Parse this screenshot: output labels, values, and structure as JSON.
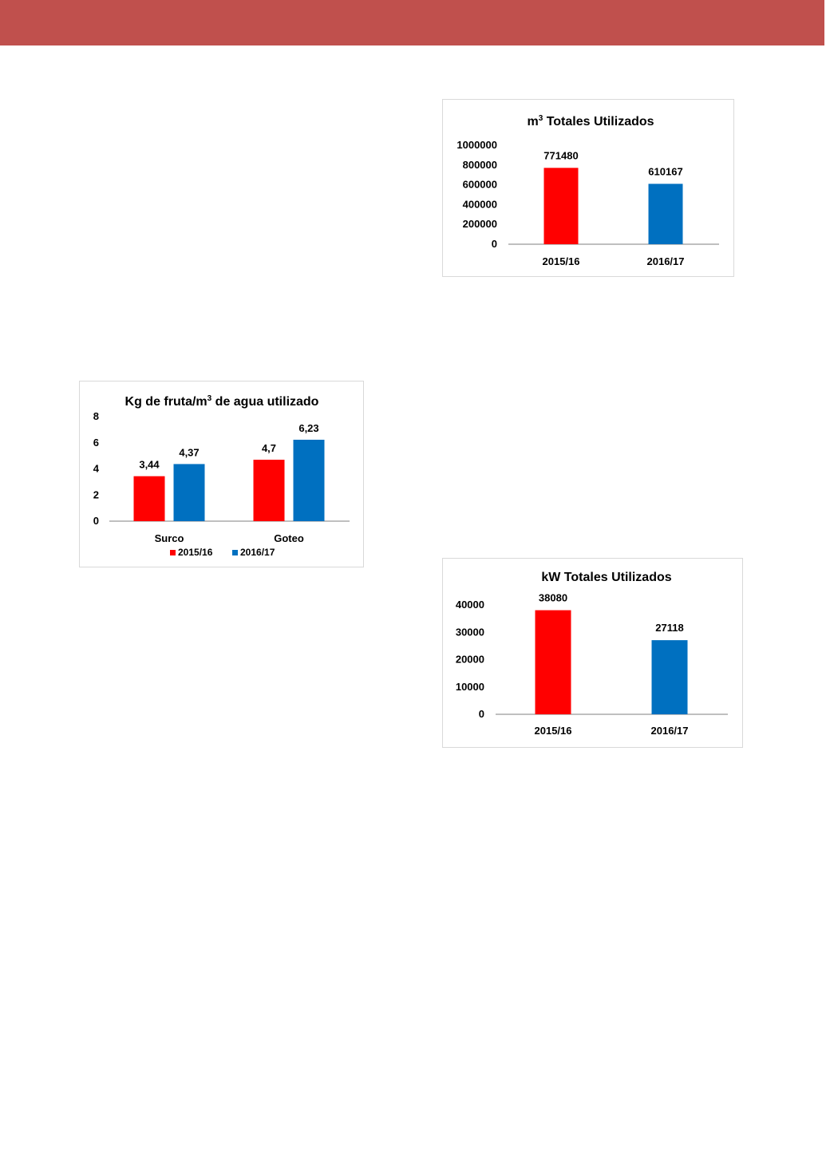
{
  "header": {
    "bar_color": "#c0504d"
  },
  "colors": {
    "series_2015": "#ff0000",
    "series_2016": "#0070c0"
  },
  "chart_data": [
    {
      "id": "m3",
      "type": "bar",
      "title_main": "m",
      "title_sup": "3",
      "title_rest": " Totales Utilizados",
      "categories": [
        "2015/16",
        "2016/17"
      ],
      "values": [
        771480,
        610167
      ],
      "data_labels": [
        "771480",
        "610167"
      ],
      "colors": [
        "#ff0000",
        "#0070c0"
      ],
      "yticks": [
        "0",
        "200000",
        "400000",
        "600000",
        "800000",
        "1000000"
      ],
      "ylim": [
        0,
        1000000
      ],
      "xlabel": "",
      "ylabel": "",
      "grid": false,
      "legend": "none"
    },
    {
      "id": "kg",
      "type": "bar",
      "title_main": "Kg de fruta/m",
      "title_sup": "3",
      "title_rest": " de agua utilizado",
      "categories": [
        "Surco",
        "Goteo"
      ],
      "series": [
        {
          "name": "2015/16",
          "color": "#ff0000",
          "values": [
            3.44,
            4.7
          ],
          "labels": [
            "3,44",
            "4,7"
          ]
        },
        {
          "name": "2016/17",
          "color": "#0070c0",
          "values": [
            4.37,
            6.23
          ],
          "labels": [
            "4,37",
            "6,23"
          ]
        }
      ],
      "yticks": [
        "0",
        "2",
        "4",
        "6",
        "8"
      ],
      "ylim": [
        0,
        8
      ],
      "xlabel": "",
      "ylabel": "",
      "grid": false,
      "legend": "bottom"
    },
    {
      "id": "kw",
      "type": "bar",
      "title_main": "kW Totales Utilizados",
      "title_sup": "",
      "title_rest": "",
      "categories": [
        "2015/16",
        "2016/17"
      ],
      "values": [
        38080,
        27118
      ],
      "data_labels": [
        "38080",
        "27118"
      ],
      "colors": [
        "#ff0000",
        "#0070c0"
      ],
      "yticks": [
        "0",
        "10000",
        "20000",
        "30000",
        "40000"
      ],
      "ylim": [
        0,
        40000
      ],
      "xlabel": "",
      "ylabel": "",
      "grid": false,
      "legend": "none"
    }
  ]
}
